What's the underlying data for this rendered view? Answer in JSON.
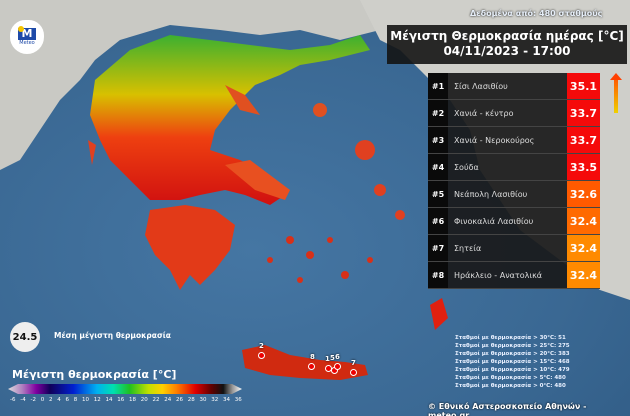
{
  "header": {
    "source": "Δεδομένα από: 480 σταθμούς",
    "title": "Μέγιστη Θερμοκρασία ημέρας [°C]",
    "datetime": "04/11/2023 - 17:00",
    "logo_text": "Meteo"
  },
  "ranking": [
    {
      "rank": "#1",
      "station": "Σίσι Λασιθίου",
      "value": "35.1",
      "color": "#f50a0a"
    },
    {
      "rank": "#2",
      "station": "Χανιά - κέντρο",
      "value": "33.7",
      "color": "#f50a0a"
    },
    {
      "rank": "#3",
      "station": "Χανιά - Νεροκούρος",
      "value": "33.7",
      "color": "#f50a0a"
    },
    {
      "rank": "#4",
      "station": "Σούδα",
      "value": "33.5",
      "color": "#f50a0a"
    },
    {
      "rank": "#5",
      "station": "Νεάπολη Λασιθίου",
      "value": "32.6",
      "color": "#ff5a00"
    },
    {
      "rank": "#6",
      "station": "Φινοκαλιά Λασιθίου",
      "value": "32.4",
      "color": "#ff6a00"
    },
    {
      "rank": "#7",
      "station": "Σητεία",
      "value": "32.4",
      "color": "#ff8a00"
    },
    {
      "rank": "#8",
      "station": "Ηράκλειο - Ανατολικά",
      "value": "32.4",
      "color": "#ff8a00"
    }
  ],
  "average": {
    "value": "24.5",
    "label": "Μέση μέγιστη θερμοκρασία"
  },
  "legend": {
    "title": "Μέγιστη θερμοκρασία [°C]",
    "ticks": [
      "-6",
      "-4",
      "-2",
      "0",
      "2",
      "4",
      "6",
      "8",
      "10",
      "12",
      "14",
      "16",
      "18",
      "20",
      "22",
      "24",
      "26",
      "28",
      "30",
      "32",
      "34",
      "36"
    ]
  },
  "stats": [
    "Σταθμοί με θερμοκρασία > 30°C: 51",
    "Σταθμοί με θερμοκρασία > 25°C: 275",
    "Σταθμοί με θερμοκρασία > 20°C: 383",
    "Σταθμοί με θερμοκρασία > 15°C: 468",
    "Σταθμοί με θερμοκρασία > 10°C: 479",
    "Σταθμοί με θερμοκρασία > 5°C: 480",
    "Σταθμοί με θερμοκρασία > 0°C: 480"
  ],
  "markers": [
    "2",
    "8",
    "1",
    "5",
    "6",
    "7"
  ],
  "copyright": "© Εθνικό Αστεροσκοπείο Αθηνών - meteo.gr"
}
